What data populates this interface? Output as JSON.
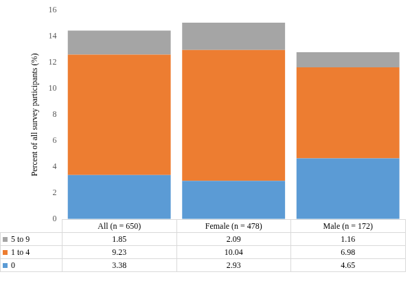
{
  "chart_data": {
    "type": "bar",
    "stacked": true,
    "y_label": "Percent of all survey participants (%)",
    "categories": [
      "All (n = 650)",
      "Female (n = 478)",
      "Male (n = 172)"
    ],
    "series": [
      {
        "name": "0",
        "color": "#5b9bd5",
        "values": [
          3.38,
          2.93,
          4.65
        ]
      },
      {
        "name": "1 to 4",
        "color": "#ed7d31",
        "values": [
          9.23,
          10.04,
          6.98
        ]
      },
      {
        "name": "5 to 9",
        "color": "#a5a5a5",
        "values": [
          1.85,
          2.09,
          1.16
        ]
      }
    ],
    "ylim": [
      0,
      16
    ],
    "yticks": [
      0,
      2,
      4,
      6,
      8,
      10,
      12,
      14,
      16
    ],
    "grid": false
  }
}
